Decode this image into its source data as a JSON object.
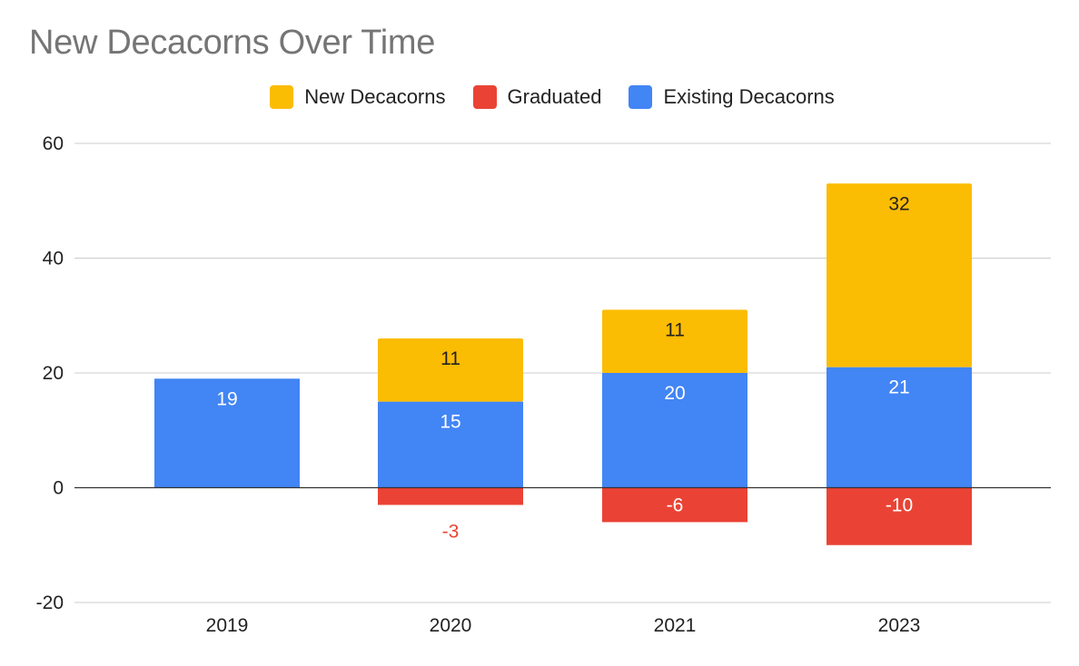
{
  "title": "New Decacorns Over Time",
  "colors": {
    "new": "#fbbc04",
    "graduated": "#ea4335",
    "existing": "#4285f4",
    "grid": "#cccccc",
    "zero": "#333333"
  },
  "chart_data": {
    "type": "bar",
    "stacked": true,
    "title": "New Decacorns Over Time",
    "xlabel": "",
    "ylabel": "",
    "categories": [
      "2019",
      "2020",
      "2021",
      "2023"
    ],
    "series": [
      {
        "name": "New Decacorns",
        "values": [
          0,
          11,
          11,
          32
        ],
        "labels": [
          "",
          "11",
          "11",
          "32"
        ]
      },
      {
        "name": "Graduated",
        "values": [
          0,
          -3,
          -6,
          -10
        ],
        "labels": [
          "",
          "-3",
          "-6",
          "-10"
        ]
      },
      {
        "name": "Existing Decacorns",
        "values": [
          19,
          15,
          20,
          21
        ],
        "labels": [
          "19",
          "15",
          "20",
          "21"
        ]
      }
    ],
    "ylim": [
      -20,
      60
    ],
    "yticks": [
      "-20",
      "0",
      "20",
      "40",
      "60"
    ],
    "grid": true,
    "legend_position": "top"
  }
}
